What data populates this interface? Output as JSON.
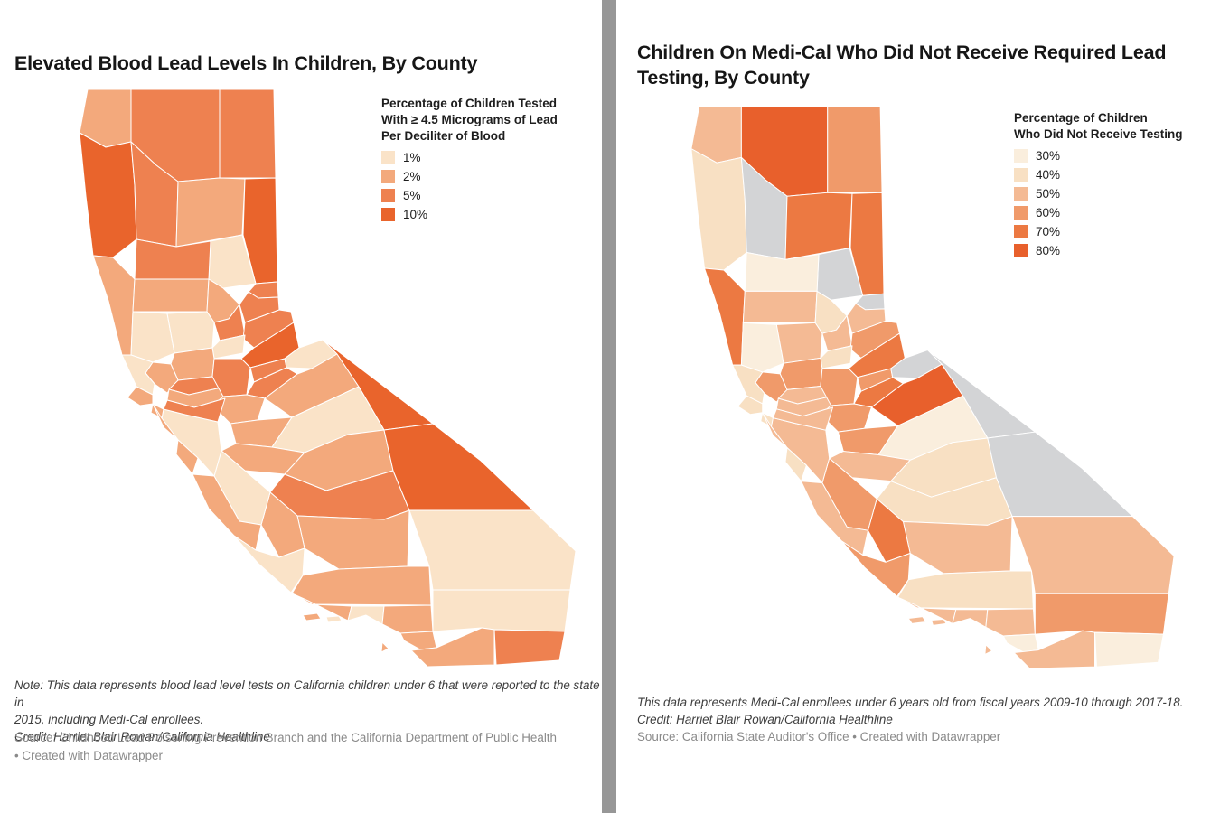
{
  "page": {
    "background": "#ffffff",
    "divider_color": "#979797"
  },
  "panels": [
    {
      "title_lines": [
        "Elevated Blood Lead Levels In Children, By County"
      ],
      "legend_title_lines": [
        "Percentage of Children Tested",
        "With ≥ 4.5 Micrograms of Lead",
        "Per Deciliter of Blood"
      ],
      "note_lines": [
        "Note: This data represents blood lead level tests on California children under 6 that were reported to the state in",
        "2015, including Medi-Cal enrollees.",
        "Credit: Harriet Blair Rowan/California Healthline"
      ],
      "source_lines": [
        "Source: Childhood Lead Poisoning Prevention Branch and the California Department of Public Health",
        "• Created with Datawrapper"
      ]
    },
    {
      "title_lines": [
        "Children On Medi-Cal Who Did Not Receive Required Lead",
        "Testing, By County"
      ],
      "legend_title_lines": [
        "Percentage of Children",
        "Who Did Not Receive Testing"
      ],
      "note_lines": [
        "This data represents Medi-Cal enrollees under 6 years old from fiscal years 2009-10 through 2017-18.",
        "Credit: Harriet Blair Rowan/California Healthline"
      ],
      "source_lines": [
        "Source: California State Auditor's Office • Created with Datawrapper"
      ]
    }
  ],
  "chart_data": [
    {
      "type": "choropleth",
      "title": "Elevated Blood Lead Levels In Children, By County",
      "legend_title": "Percentage of Children Tested With ≥ 4.5 Micrograms of Lead Per Deciliter of Blood",
      "buckets": [
        "1%",
        "2%",
        "5%",
        "10%"
      ],
      "bucket_colors": [
        "#fae3c8",
        "#f3a97c",
        "#ee8150",
        "#e9642c"
      ],
      "values": {
        "Del Norte": "2%",
        "Siskiyou": "5%",
        "Modoc": "5%",
        "Humboldt": "10%",
        "Trinity": "5%",
        "Shasta": "2%",
        "Lassen": "10%",
        "Plumas": "1%",
        "Sierra": "5%",
        "Tehama": "5%",
        "Mendocino": "2%",
        "Glenn": "2%",
        "Butte": "2%",
        "Lake": "1%",
        "Colusa": "1%",
        "Yuba": "5%",
        "Sutter": "1%",
        "Nevada": "5%",
        "Placer": "5%",
        "El Dorado": "10%",
        "Yolo": "2%",
        "Napa": "2%",
        "Sonoma": "1%",
        "Marin": "2%",
        "Solano": "5%",
        "Contra Costa": "2%",
        "Sacramento": "5%",
        "Amador": "5%",
        "Alpine": "1%",
        "Calaveras": "5%",
        "Tuolumne": "2%",
        "Mono": "10%",
        "San Joaquin": "2%",
        "Stanislaus": "2%",
        "Mariposa": "1%",
        "Merced": "2%",
        "Madera": "2%",
        "Fresno": "5%",
        "Inyo": "10%",
        "Tulare": "2%",
        "Kings": "2%",
        "San Benito": "1%",
        "Santa Clara": "1%",
        "Santa Cruz": "2%",
        "San Francisco": "2%",
        "San Mateo": "2%",
        "Alameda": "5%",
        "Monterey": "2%",
        "San Luis Obispo": "1%",
        "Kern": "2%",
        "Santa Barbara": "2%",
        "Ventura": "1%",
        "Los Angeles": "2%",
        "San Bernardino": "1%",
        "Orange": "2%",
        "Riverside": "1%",
        "San Diego": "2%",
        "Imperial": "5%"
      }
    },
    {
      "type": "choropleth",
      "title": "Children On Medi-Cal Who Did Not Receive Required Lead Testing, By County",
      "legend_title": "Percentage of Children Who Did Not Receive Testing",
      "buckets": [
        "30%",
        "40%",
        "50%",
        "60%",
        "70%",
        "80%"
      ],
      "bucket_colors": [
        "#faeedd",
        "#f8e0c3",
        "#f4ba94",
        "#f09a6a",
        "#ec7942",
        "#e8602c"
      ],
      "nodata_color": "#d3d4d6",
      "values": {
        "Del Norte": "50%",
        "Siskiyou": "80%",
        "Modoc": "60%",
        "Humboldt": "40%",
        "Trinity": "no data",
        "Shasta": "70%",
        "Lassen": "70%",
        "Plumas": "no data",
        "Sierra": "no data",
        "Tehama": "30%",
        "Mendocino": "70%",
        "Glenn": "50%",
        "Butte": "40%",
        "Lake": "30%",
        "Colusa": "50%",
        "Yuba": "50%",
        "Sutter": "40%",
        "Nevada": "50%",
        "Placer": "60%",
        "El Dorado": "70%",
        "Yolo": "60%",
        "Napa": "60%",
        "Sonoma": "40%",
        "Marin": "40%",
        "Solano": "50%",
        "Contra Costa": "50%",
        "Sacramento": "60%",
        "Amador": "60%",
        "Alpine": "no data",
        "Calaveras": "70%",
        "Tuolumne": "80%",
        "Mono": "no data",
        "San Joaquin": "60%",
        "Stanislaus": "60%",
        "Mariposa": "30%",
        "Merced": "50%",
        "Madera": "40%",
        "Fresno": "40%",
        "Inyo": "no data",
        "Tulare": "50%",
        "Kings": "70%",
        "San Benito": "60%",
        "Santa Clara": "50%",
        "Santa Cruz": "40%",
        "San Francisco": "40%",
        "San Mateo": "50%",
        "Alameda": "50%",
        "Monterey": "50%",
        "San Luis Obispo": "60%",
        "Kern": "40%",
        "Santa Barbara": "50%",
        "Ventura": "50%",
        "Los Angeles": "50%",
        "San Bernardino": "50%",
        "Orange": "30%",
        "Riverside": "60%",
        "San Diego": "50%",
        "Imperial": "30%"
      }
    }
  ]
}
